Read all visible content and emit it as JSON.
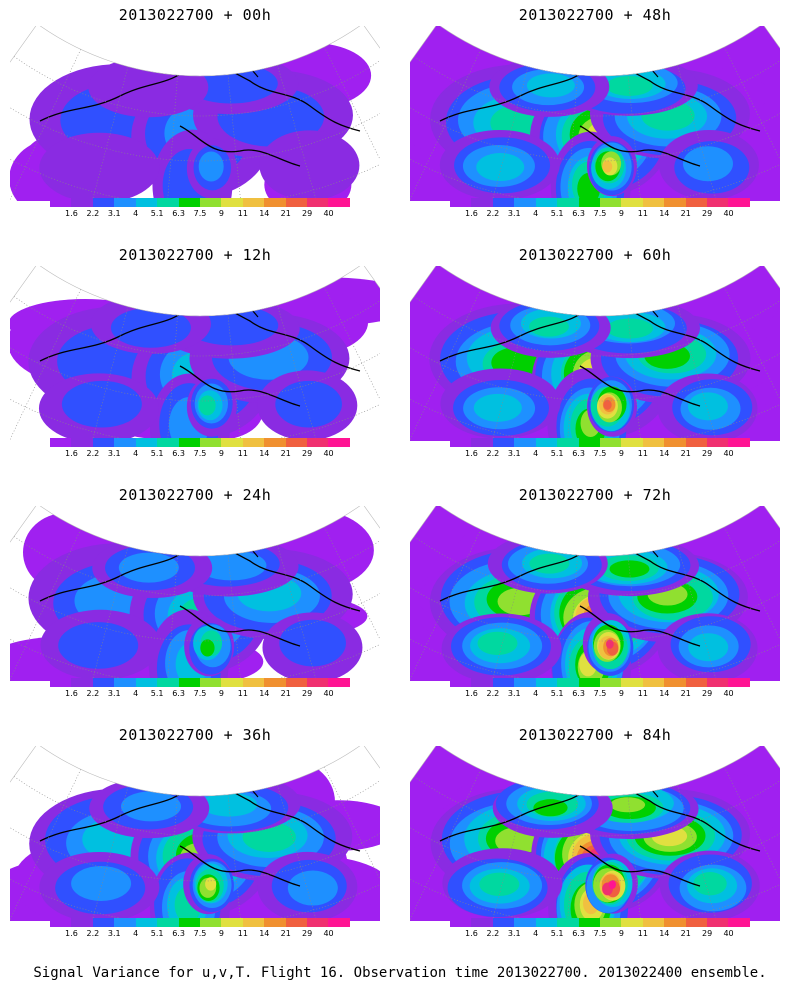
{
  "panels": [
    {
      "title": "2013022700 + 00h",
      "level": 0
    },
    {
      "title": "2013022700 + 48h",
      "level": 4
    },
    {
      "title": "2013022700 + 12h",
      "level": 1
    },
    {
      "title": "2013022700 + 60h",
      "level": 5
    },
    {
      "title": "2013022700 + 24h",
      "level": 2
    },
    {
      "title": "2013022700 + 72h",
      "level": 6
    },
    {
      "title": "2013022700 + 36h",
      "level": 3
    },
    {
      "title": "2013022700 + 84h",
      "level": 7
    }
  ],
  "colorbar": {
    "labels": [
      "1.6",
      "2.2",
      "3.1",
      "4",
      "5.1",
      "6.3",
      "7.5",
      "9",
      "11",
      "14",
      "21",
      "29",
      "40"
    ],
    "colors": [
      "#a020f0",
      "#8a2be2",
      "#3050ff",
      "#1e90ff",
      "#00c0e0",
      "#00d8a0",
      "#00d000",
      "#90e030",
      "#e0e040",
      "#f0c040",
      "#f09030",
      "#f06040",
      "#f03070",
      "#ff1493"
    ]
  },
  "caption": "Signal Variance for u,v,T. Flight 16. Observation time 2013022700. 2013022400 ensemble."
}
